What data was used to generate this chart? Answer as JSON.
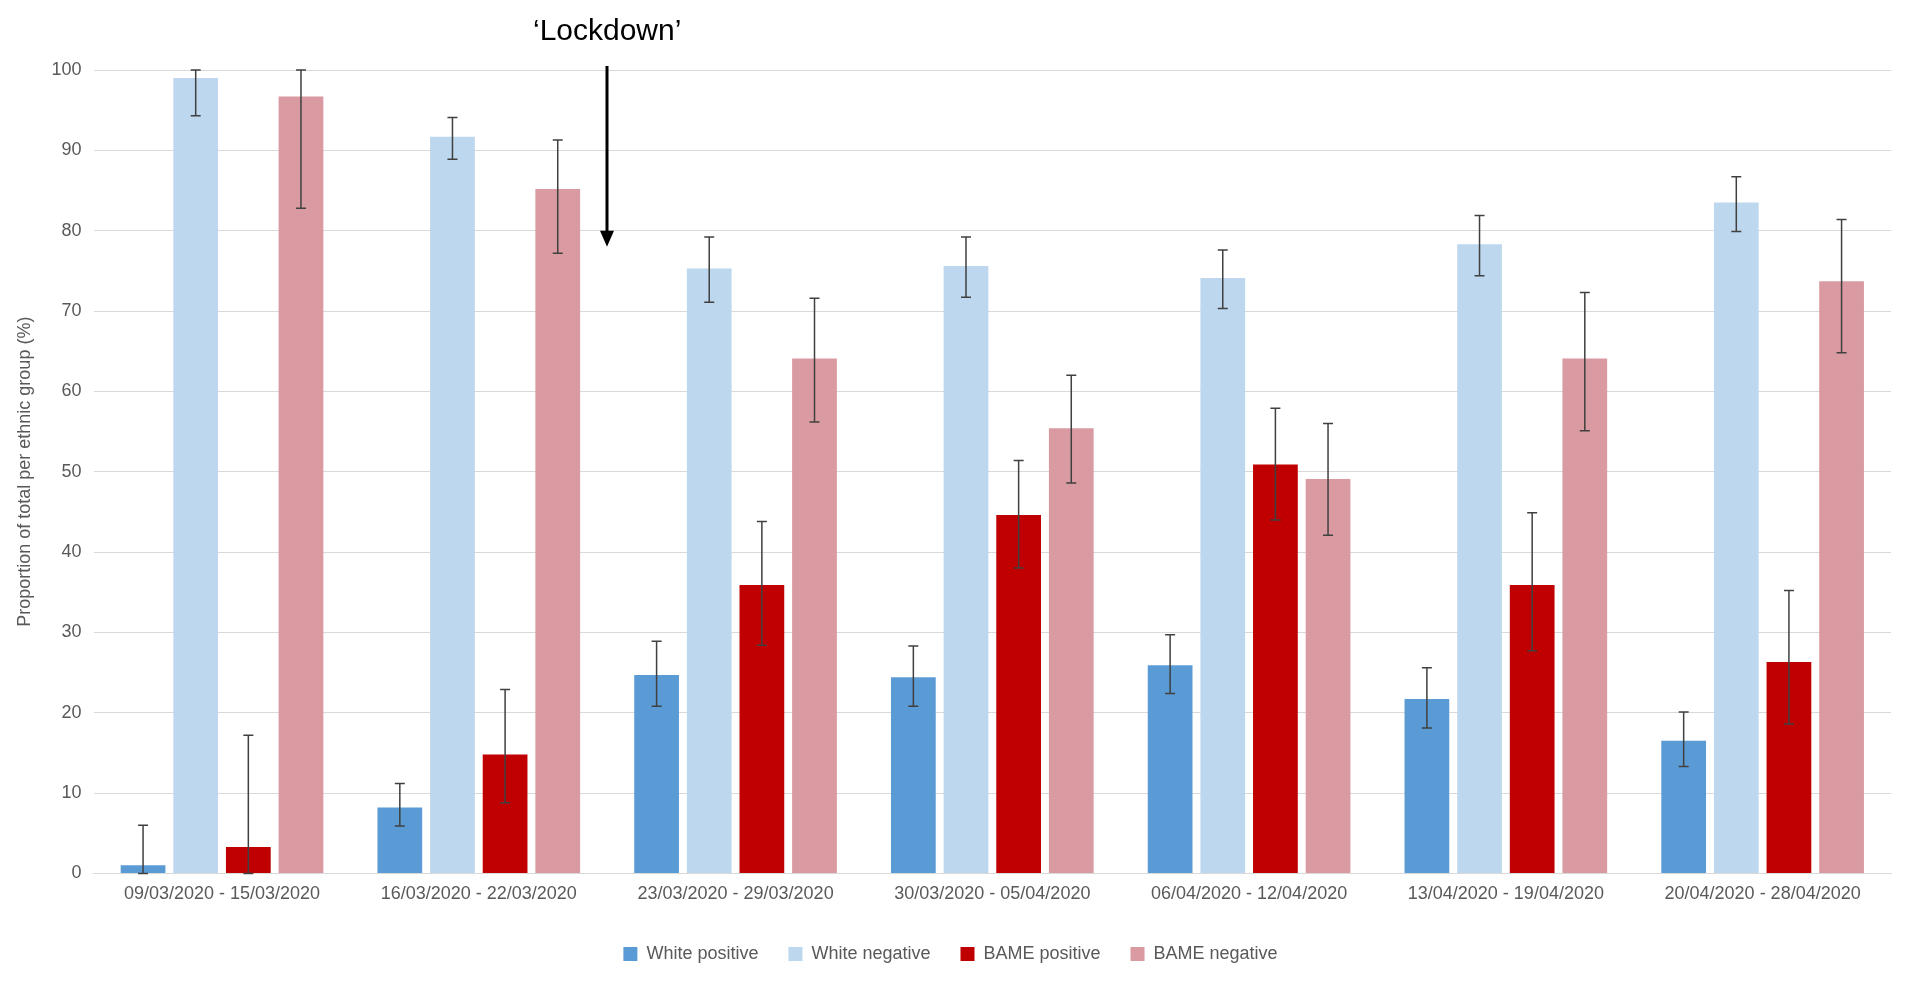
{
  "chart_data": {
    "type": "bar",
    "ylabel": "Proportion of total per ethnic group (%)",
    "categories": [
      "09/03/2020 - 15/03/2020",
      "16/03/2020 - 22/03/2020",
      "23/03/2020 - 29/03/2020",
      "30/03/2020 - 05/04/2020",
      "06/04/2020 - 12/04/2020",
      "13/04/2020 - 19/04/2020",
      "20/04/2020 - 28/04/2020"
    ],
    "series": [
      {
        "name": "White positive",
        "color": "#5b9bd5",
        "values": [
          1.0,
          8.2,
          24.7,
          24.4,
          25.9,
          21.7,
          16.5
        ],
        "errors": [
          [
            0,
            6.0
          ],
          [
            5.9,
            11.2
          ],
          [
            20.8,
            28.9
          ],
          [
            20.8,
            28.3
          ],
          [
            22.4,
            29.7
          ],
          [
            18.1,
            25.6
          ],
          [
            13.3,
            20.1
          ]
        ]
      },
      {
        "name": "White negative",
        "color": "#bdd7ee",
        "values": [
          99.0,
          91.7,
          75.3,
          75.6,
          74.1,
          78.3,
          83.5
        ],
        "errors": [
          [
            94.3,
            100
          ],
          [
            88.9,
            94.1
          ],
          [
            71.1,
            79.2
          ],
          [
            71.7,
            79.2
          ],
          [
            70.3,
            77.6
          ],
          [
            74.4,
            81.9
          ],
          [
            79.9,
            86.7
          ]
        ]
      },
      {
        "name": "BAME positive",
        "color": "#c00000",
        "values": [
          3.3,
          14.8,
          35.9,
          44.6,
          50.9,
          35.9,
          26.3
        ],
        "errors": [
          [
            0,
            17.2
          ],
          [
            8.8,
            22.9
          ],
          [
            28.4,
            43.8
          ],
          [
            38.0,
            51.4
          ],
          [
            44.0,
            57.9
          ],
          [
            27.7,
            44.9
          ],
          [
            18.6,
            35.2
          ]
        ]
      },
      {
        "name": "BAME negative",
        "color": "#da9aa1",
        "values": [
          96.7,
          85.2,
          64.1,
          55.4,
          49.1,
          64.1,
          73.7
        ],
        "errors": [
          [
            82.8,
            100
          ],
          [
            77.2,
            91.3
          ],
          [
            56.2,
            71.6
          ],
          [
            48.6,
            62.0
          ],
          [
            42.1,
            56.0
          ],
          [
            55.1,
            72.3
          ],
          [
            64.8,
            81.4
          ]
        ]
      }
    ],
    "ylim": [
      0,
      100
    ],
    "yticks": [
      0,
      10,
      20,
      30,
      40,
      50,
      60,
      70,
      80,
      90,
      100
    ],
    "grid": "y",
    "legend": "bottom",
    "annotations": [
      "‘Lockdown’"
    ]
  }
}
